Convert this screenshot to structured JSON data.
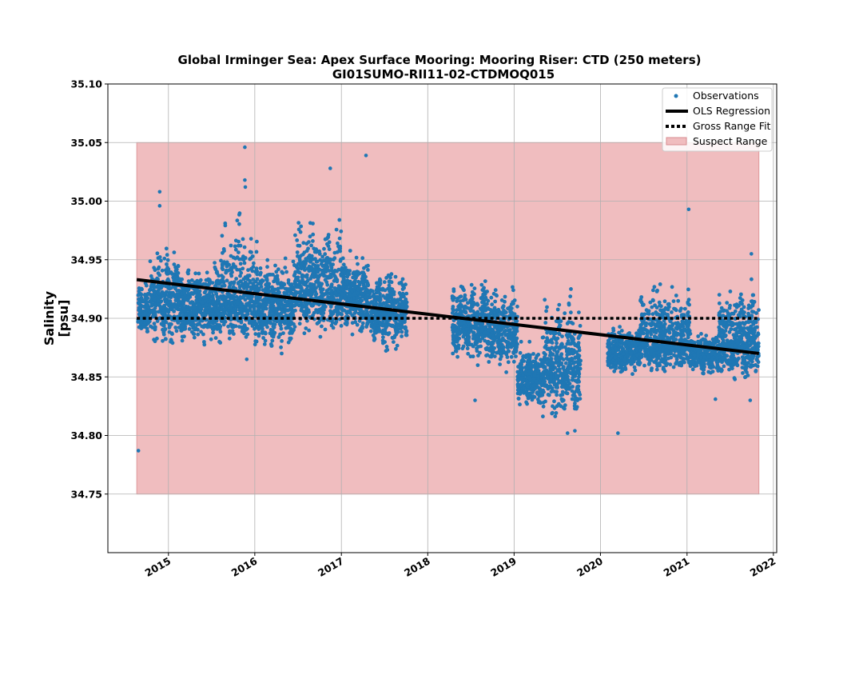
{
  "chart_data": {
    "type": "scatter",
    "title_line1": "Global Irminger Sea: Apex Surface Mooring: Mooring Riser: CTD (250 meters)",
    "title_line2": "GI01SUMO-RII11-02-CTDMOQ015",
    "ylabel_line1": "Salinity",
    "ylabel_line2": "[psu]",
    "x_is_date": true,
    "xlim": [
      "2014-04-20",
      "2022-01-15"
    ],
    "ylim": [
      34.7,
      35.1
    ],
    "xticks": [
      "2015-01-01",
      "2016-01-01",
      "2017-01-01",
      "2018-01-01",
      "2019-01-01",
      "2020-01-01",
      "2021-01-01",
      "2022-01-01"
    ],
    "xtick_labels": [
      "2015",
      "2016",
      "2017",
      "2018",
      "2019",
      "2020",
      "2021",
      "2022"
    ],
    "yticks": [
      34.75,
      34.8,
      34.85,
      34.9,
      34.95,
      35.0,
      35.05,
      35.1
    ],
    "ytick_labels": [
      "34.75",
      "34.80",
      "34.85",
      "34.90",
      "34.95",
      "35.00",
      "35.05",
      "35.10"
    ],
    "grid": true,
    "legend_position": "top-right",
    "legend": [
      "Observations",
      "OLS Regression",
      "Gross Range Fit",
      "Suspect Range"
    ],
    "colors": {
      "observations": "#1f77b4",
      "regression": "#000000",
      "gross_range": "#000000",
      "suspect_fill": "#f0bdbf",
      "suspect_edge": "#d98c90",
      "grid": "#b0b0b0"
    },
    "suspect_range": {
      "x_start": "2014-08-20",
      "x_end": "2021-11-01",
      "y_min": 34.75,
      "y_max": 35.05
    },
    "gross_range_fit": {
      "x_start": "2014-08-20",
      "x_end": "2021-11-01",
      "y": 34.9
    },
    "ols_regression": {
      "x_start": "2014-08-20",
      "x_end": "2021-11-01",
      "y_start": 34.933,
      "y_end": 34.87
    },
    "observation_segments": [
      {
        "start": "2014-08-25",
        "end": "2014-10-15",
        "center": 34.905,
        "lo": 34.885,
        "hi": 34.935
      },
      {
        "start": "2014-10-15",
        "end": "2015-02-15",
        "center": 34.915,
        "lo": 34.875,
        "hi": 34.965
      },
      {
        "start": "2015-02-15",
        "end": "2015-07-15",
        "center": 34.91,
        "lo": 34.87,
        "hi": 34.945
      },
      {
        "start": "2015-07-15",
        "end": "2016-02-01",
        "center": 34.915,
        "lo": 34.87,
        "hi": 34.99
      },
      {
        "start": "2016-02-01",
        "end": "2016-06-15",
        "center": 34.91,
        "lo": 34.87,
        "hi": 34.955
      },
      {
        "start": "2016-06-15",
        "end": "2016-12-31",
        "center": 34.925,
        "lo": 34.88,
        "hi": 34.99
      },
      {
        "start": "2016-12-31",
        "end": "2017-04-15",
        "center": 34.92,
        "lo": 34.88,
        "hi": 34.96
      },
      {
        "start": "2017-04-15",
        "end": "2017-10-05",
        "center": 34.905,
        "lo": 34.87,
        "hi": 34.945
      },
      {
        "start": "2018-04-15",
        "end": "2018-09-15",
        "center": 34.895,
        "lo": 34.86,
        "hi": 34.935
      },
      {
        "start": "2018-09-15",
        "end": "2019-01-15",
        "center": 34.89,
        "lo": 34.85,
        "hi": 34.93
      },
      {
        "start": "2019-01-15",
        "end": "2019-05-01",
        "center": 34.85,
        "lo": 34.82,
        "hi": 34.88
      },
      {
        "start": "2019-05-01",
        "end": "2019-10-10",
        "center": 34.86,
        "lo": 34.81,
        "hi": 34.925
      },
      {
        "start": "2020-02-01",
        "end": "2020-06-15",
        "center": 34.87,
        "lo": 34.85,
        "hi": 34.895
      },
      {
        "start": "2020-06-15",
        "end": "2021-01-15",
        "center": 34.88,
        "lo": 34.85,
        "hi": 34.935
      },
      {
        "start": "2021-01-15",
        "end": "2021-05-15",
        "center": 34.87,
        "lo": 34.85,
        "hi": 34.89
      },
      {
        "start": "2021-05-15",
        "end": "2021-10-31",
        "center": 34.88,
        "lo": 34.845,
        "hi": 34.935
      }
    ],
    "observation_outliers": [
      {
        "x": "2014-08-27",
        "y": 34.787
      },
      {
        "x": "2014-11-25",
        "y": 35.008
      },
      {
        "x": "2014-11-25",
        "y": 34.996
      },
      {
        "x": "2015-11-20",
        "y": 35.046
      },
      {
        "x": "2015-11-20",
        "y": 35.018
      },
      {
        "x": "2015-11-22",
        "y": 35.012
      },
      {
        "x": "2016-11-15",
        "y": 35.028
      },
      {
        "x": "2017-04-15",
        "y": 35.039
      },
      {
        "x": "2015-11-28",
        "y": 34.865
      },
      {
        "x": "2020-03-15",
        "y": 34.802
      },
      {
        "x": "2021-01-08",
        "y": 34.993
      },
      {
        "x": "2019-08-15",
        "y": 34.802
      },
      {
        "x": "2019-09-15",
        "y": 34.804
      },
      {
        "x": "2018-07-20",
        "y": 34.83
      },
      {
        "x": "2021-05-01",
        "y": 34.831
      },
      {
        "x": "2021-09-25",
        "y": 34.83
      },
      {
        "x": "2021-09-30",
        "y": 34.955
      }
    ]
  }
}
